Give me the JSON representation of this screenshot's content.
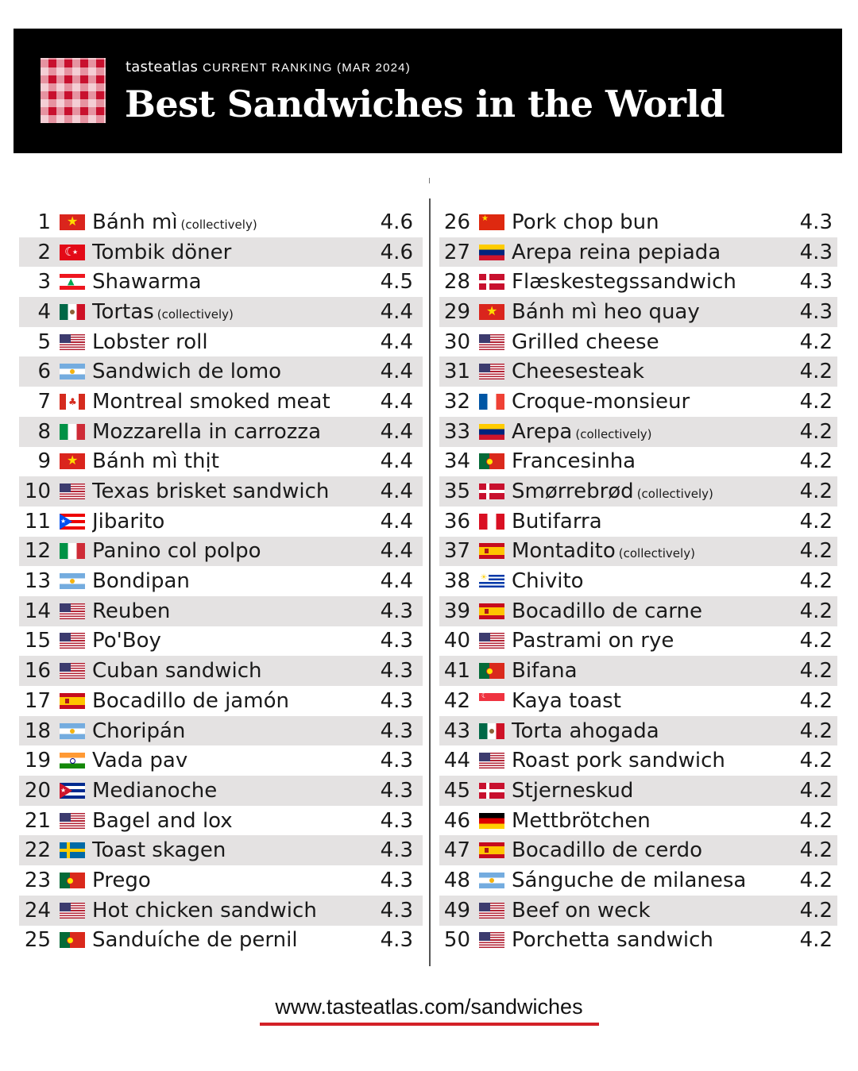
{
  "header": {
    "brand": "tasteatlas",
    "subtitle": "CURRENT RANKING (MAR 2024)",
    "title": "Best Sandwiches in the World"
  },
  "colors": {
    "accent": "#d32027",
    "header_bg": "#000000",
    "row_shade": "#e4e2e2"
  },
  "rankings_left": [
    {
      "rank": "1",
      "flag": "vietnam-flag-icon",
      "name": "Bánh mì",
      "note": "(collectively)",
      "score": "4.6"
    },
    {
      "rank": "2",
      "flag": "turkey-flag-icon",
      "name": "Tombik döner",
      "note": "",
      "score": "4.6"
    },
    {
      "rank": "3",
      "flag": "lebanon-flag-icon",
      "name": "Shawarma",
      "note": "",
      "score": "4.5"
    },
    {
      "rank": "4",
      "flag": "mexico-flag-icon",
      "name": "Tortas",
      "note": "(collectively)",
      "score": "4.4"
    },
    {
      "rank": "5",
      "flag": "usa-flag-icon",
      "name": "Lobster roll",
      "note": "",
      "score": "4.4"
    },
    {
      "rank": "6",
      "flag": "argentina-flag-icon",
      "name": "Sandwich de lomo",
      "note": "",
      "score": "4.4"
    },
    {
      "rank": "7",
      "flag": "canada-flag-icon",
      "name": "Montreal smoked meat",
      "note": "",
      "score": "4.4"
    },
    {
      "rank": "8",
      "flag": "italy-flag-icon",
      "name": "Mozzarella in carrozza",
      "note": "",
      "score": "4.4"
    },
    {
      "rank": "9",
      "flag": "vietnam-flag-icon",
      "name": "Bánh mì thịt",
      "note": "",
      "score": "4.4"
    },
    {
      "rank": "10",
      "flag": "usa-flag-icon",
      "name": "Texas brisket sandwich",
      "note": "",
      "score": "4.4"
    },
    {
      "rank": "11",
      "flag": "puerto-rico-flag-icon",
      "name": "Jibarito",
      "note": "",
      "score": "4.4"
    },
    {
      "rank": "12",
      "flag": "italy-flag-icon",
      "name": "Panino col polpo",
      "note": "",
      "score": "4.4"
    },
    {
      "rank": "13",
      "flag": "argentina-flag-icon",
      "name": "Bondipan",
      "note": "",
      "score": "4.4"
    },
    {
      "rank": "14",
      "flag": "usa-flag-icon",
      "name": "Reuben",
      "note": "",
      "score": "4.3"
    },
    {
      "rank": "15",
      "flag": "usa-flag-icon",
      "name": "Po'Boy",
      "note": "",
      "score": "4.3"
    },
    {
      "rank": "16",
      "flag": "usa-flag-icon",
      "name": "Cuban sandwich",
      "note": "",
      "score": "4.3"
    },
    {
      "rank": "17",
      "flag": "spain-flag-icon",
      "name": "Bocadillo de jamón",
      "note": "",
      "score": "4.3"
    },
    {
      "rank": "18",
      "flag": "argentina-flag-icon",
      "name": "Choripán",
      "note": "",
      "score": "4.3"
    },
    {
      "rank": "19",
      "flag": "india-flag-icon",
      "name": "Vada pav",
      "note": "",
      "score": "4.3"
    },
    {
      "rank": "20",
      "flag": "cuba-flag-icon",
      "name": "Medianoche",
      "note": "",
      "score": "4.3"
    },
    {
      "rank": "21",
      "flag": "usa-flag-icon",
      "name": "Bagel and lox",
      "note": "",
      "score": "4.3"
    },
    {
      "rank": "22",
      "flag": "sweden-flag-icon",
      "name": "Toast skagen",
      "note": "",
      "score": "4.3"
    },
    {
      "rank": "23",
      "flag": "portugal-flag-icon",
      "name": "Prego",
      "note": "",
      "score": "4.3"
    },
    {
      "rank": "24",
      "flag": "usa-flag-icon",
      "name": "Hot chicken sandwich",
      "note": "",
      "score": "4.3"
    },
    {
      "rank": "25",
      "flag": "portugal-flag-icon",
      "name": "Sanduíche de pernil",
      "note": "",
      "score": "4.3"
    }
  ],
  "rankings_right": [
    {
      "rank": "26",
      "flag": "china-flag-icon",
      "name": "Pork chop bun",
      "note": "",
      "score": "4.3"
    },
    {
      "rank": "27",
      "flag": "venezuela-flag-icon",
      "name": "Arepa reina pepiada",
      "note": "",
      "score": "4.3"
    },
    {
      "rank": "28",
      "flag": "denmark-flag-icon",
      "name": "Flæskestegssandwich",
      "note": "",
      "score": "4.3"
    },
    {
      "rank": "29",
      "flag": "vietnam-flag-icon",
      "name": "Bánh mì heo quay",
      "note": "",
      "score": "4.3"
    },
    {
      "rank": "30",
      "flag": "usa-flag-icon",
      "name": "Grilled cheese",
      "note": "",
      "score": "4.2"
    },
    {
      "rank": "31",
      "flag": "usa-flag-icon",
      "name": "Cheesesteak",
      "note": "",
      "score": "4.2"
    },
    {
      "rank": "32",
      "flag": "france-flag-icon",
      "name": "Croque-monsieur",
      "note": "",
      "score": "4.2"
    },
    {
      "rank": "33",
      "flag": "venezuela-flag-icon",
      "name": "Arepa",
      "note": "(collectively)",
      "score": "4.2"
    },
    {
      "rank": "34",
      "flag": "portugal-flag-icon",
      "name": "Francesinha",
      "note": "",
      "score": "4.2"
    },
    {
      "rank": "35",
      "flag": "denmark-flag-icon",
      "name": "Smørrebrød",
      "note": "(collectively)",
      "score": "4.2"
    },
    {
      "rank": "36",
      "flag": "peru-flag-icon",
      "name": "Butifarra",
      "note": "",
      "score": "4.2"
    },
    {
      "rank": "37",
      "flag": "spain-flag-icon",
      "name": "Montadito",
      "note": "(collectively)",
      "score": "4.2"
    },
    {
      "rank": "38",
      "flag": "uruguay-flag-icon",
      "name": "Chivito",
      "note": "",
      "score": "4.2"
    },
    {
      "rank": "39",
      "flag": "spain-flag-icon",
      "name": "Bocadillo de carne",
      "note": "",
      "score": "4.2"
    },
    {
      "rank": "40",
      "flag": "usa-flag-icon",
      "name": "Pastrami on rye",
      "note": "",
      "score": "4.2"
    },
    {
      "rank": "41",
      "flag": "portugal-flag-icon",
      "name": "Bifana",
      "note": "",
      "score": "4.2"
    },
    {
      "rank": "42",
      "flag": "singapore-flag-icon",
      "name": "Kaya toast",
      "note": "",
      "score": "4.2"
    },
    {
      "rank": "43",
      "flag": "mexico-flag-icon",
      "name": "Torta ahogada",
      "note": "",
      "score": "4.2"
    },
    {
      "rank": "44",
      "flag": "usa-flag-icon",
      "name": "Roast pork sandwich",
      "note": "",
      "score": "4.2"
    },
    {
      "rank": "45",
      "flag": "denmark-flag-icon",
      "name": "Stjerneskud",
      "note": "",
      "score": "4.2"
    },
    {
      "rank": "46",
      "flag": "germany-flag-icon",
      "name": "Mettbrötchen",
      "note": "",
      "score": "4.2"
    },
    {
      "rank": "47",
      "flag": "spain-flag-icon",
      "name": "Bocadillo de cerdo",
      "note": "",
      "score": "4.2"
    },
    {
      "rank": "48",
      "flag": "argentina-flag-icon",
      "name": "Sánguche de milanesa",
      "note": "",
      "score": "4.2"
    },
    {
      "rank": "49",
      "flag": "usa-flag-icon",
      "name": "Beef on weck",
      "note": "",
      "score": "4.2"
    },
    {
      "rank": "50",
      "flag": "usa-flag-icon",
      "name": "Porchetta sandwich",
      "note": "",
      "score": "4.2"
    }
  ],
  "footer": {
    "url": "www.tasteatlas.com/sandwiches"
  }
}
